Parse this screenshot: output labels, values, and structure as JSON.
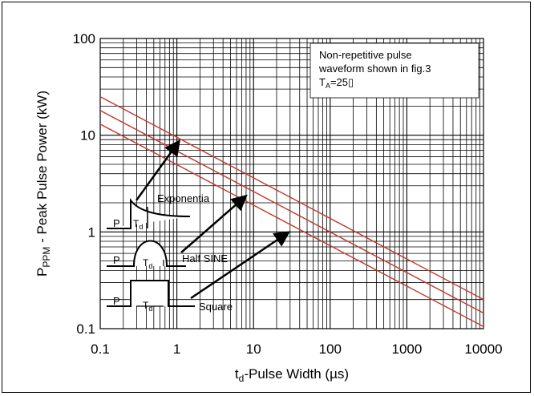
{
  "chart_data": {
    "type": "line",
    "xlabel_main": "t",
    "xlabel_sub": "d",
    "xlabel_rest": "-Pulse Width (µs)",
    "ylabel_main": "P",
    "ylabel_sub": "PPM",
    "ylabel_rest": " - Peak Pulse Power (kW)",
    "x_scale": "log",
    "y_scale": "log",
    "xlim": [
      0.1,
      10000
    ],
    "ylim": [
      0.1,
      100
    ],
    "x_ticks": [
      "0.1",
      "1",
      "10",
      "100",
      "1000",
      "10000"
    ],
    "y_ticks": [
      "0.1",
      "1",
      "10",
      "100"
    ],
    "grid": true,
    "line_color": "#c0392b",
    "series": [
      {
        "x": [
          0.1,
          10000
        ],
        "y": [
          25,
          0.2
        ]
      },
      {
        "x": [
          0.1,
          10000
        ],
        "y": [
          18,
          0.145
        ]
      },
      {
        "x": [
          0.1,
          10000
        ],
        "y": [
          13,
          0.105
        ]
      }
    ],
    "annotation": {
      "line1": "Non-repetitive pulse",
      "line2": "waveform shown in fig.3",
      "line3_main": "T",
      "line3_sub": "A",
      "line3_rest": "=25▯"
    },
    "waveforms": {
      "exponential_label": "Exponentia",
      "half_sine_label": "Half SINE",
      "square_label": "Square",
      "p_label": "P",
      "t_label": "T",
      "t_sub": "d"
    }
  }
}
